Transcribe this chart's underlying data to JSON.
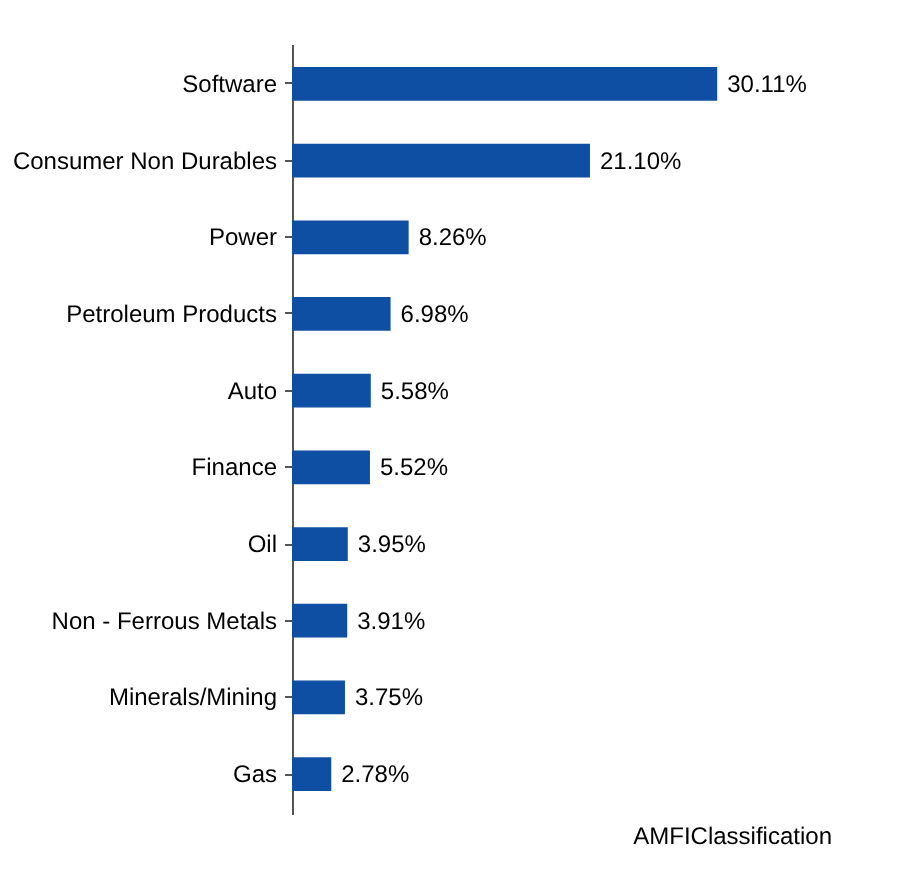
{
  "chart_data": {
    "type": "bar",
    "orientation": "horizontal",
    "categories": [
      "Software",
      "Consumer Non Durables",
      "Power",
      "Petroleum Products",
      "Auto",
      "Finance",
      "Oil",
      "Non - Ferrous Metals",
      "Minerals/Mining",
      "Gas"
    ],
    "values": [
      30.11,
      21.1,
      8.26,
      6.98,
      5.58,
      5.52,
      3.95,
      3.91,
      3.75,
      2.78
    ],
    "value_labels": [
      "30.11%",
      "21.10%",
      "8.26%",
      "6.98%",
      "5.58%",
      "5.52%",
      "3.95%",
      "3.91%",
      "3.75%",
      "2.78%"
    ],
    "color": "#0e4ea3",
    "annotations": [
      "AMFIClassification"
    ]
  }
}
